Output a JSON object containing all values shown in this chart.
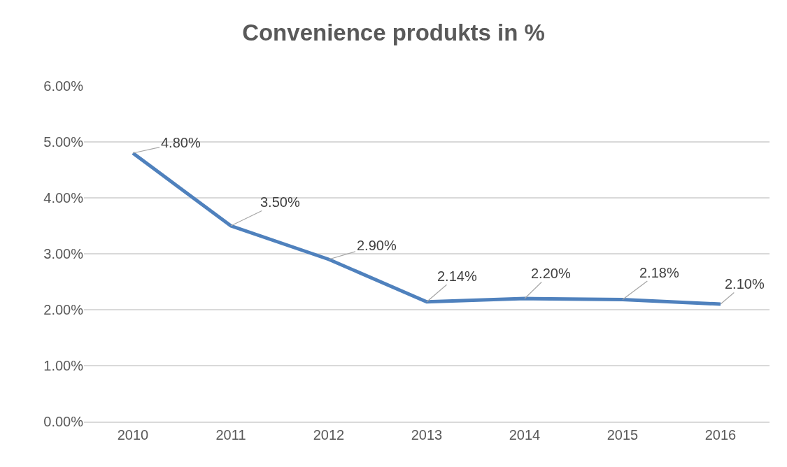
{
  "chart_data": {
    "type": "line",
    "title": "Convenience produkts in %",
    "categories": [
      "2010",
      "2011",
      "2012",
      "2013",
      "2014",
      "2015",
      "2016"
    ],
    "series": [
      {
        "color": "#4f81bd",
        "values": [
          4.8,
          3.5,
          2.9,
          2.14,
          2.2,
          2.18,
          2.1
        ]
      }
    ],
    "value_labels": [
      "4.80%",
      "3.50%",
      "2.90%",
      "2.14%",
      "2.20%",
      "2.18%",
      "2.10%"
    ],
    "ylim": [
      0,
      6
    ],
    "yticks": [
      {
        "value": 0,
        "label": "0.00%"
      },
      {
        "value": 1,
        "label": "1.00%"
      },
      {
        "value": 2,
        "label": "2.00%"
      },
      {
        "value": 3,
        "label": "3.00%"
      },
      {
        "value": 4,
        "label": "4.00%"
      },
      {
        "value": 5,
        "label": "5.00%"
      },
      {
        "value": 6,
        "label": "6.00%"
      }
    ],
    "grid": "y",
    "marker": "none",
    "line_style": "solid"
  }
}
